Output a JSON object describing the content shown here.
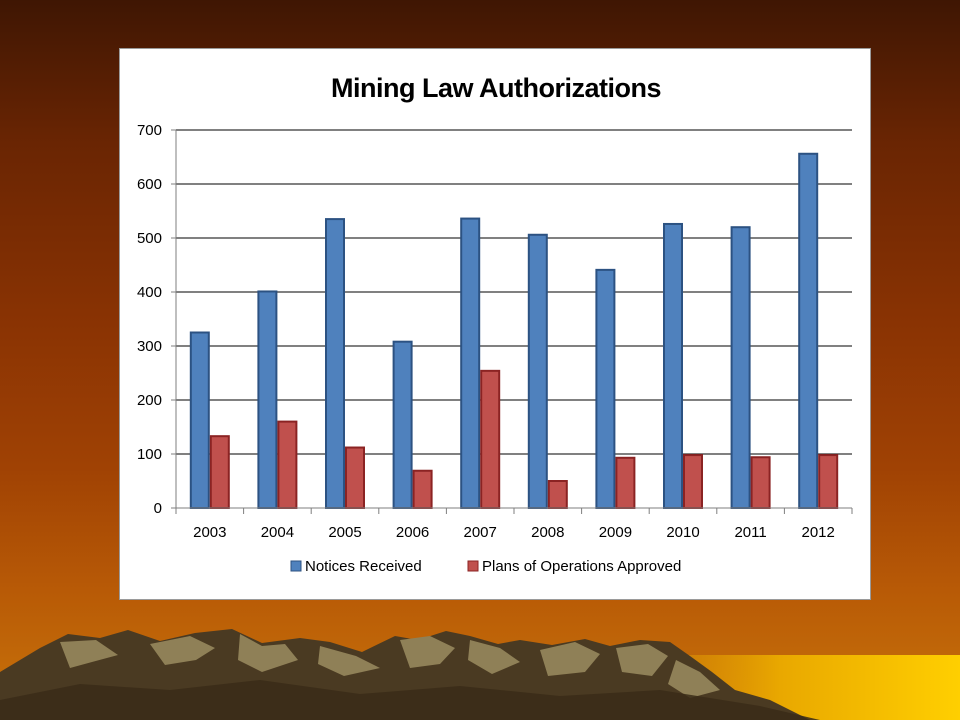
{
  "colors": {
    "notices": "#4f81bd",
    "notices_edge": "#2c5282",
    "plans": "#c0504d",
    "plans_edge": "#8b2323",
    "mountain_dark": "#4a3a22",
    "mountain_light": "#8f8057",
    "sun_glow": "#f5c400"
  },
  "chart_data": {
    "type": "bar",
    "title": "Mining Law Authorizations",
    "xlabel": "",
    "ylabel": "",
    "categories": [
      "2003",
      "2004",
      "2005",
      "2006",
      "2007",
      "2008",
      "2009",
      "2010",
      "2011",
      "2012"
    ],
    "series": [
      {
        "name": "Notices Received",
        "values": [
          325,
          401,
          535,
          308,
          536,
          506,
          441,
          526,
          520,
          656
        ]
      },
      {
        "name": "Plans of Operations Approved",
        "values": [
          133,
          160,
          112,
          69,
          254,
          50,
          93,
          98,
          94,
          98
        ]
      }
    ],
    "ylim": [
      0,
      700
    ],
    "yticks": [
      0,
      100,
      200,
      300,
      400,
      500,
      600,
      700
    ],
    "grid": true,
    "legend_position": "bottom"
  }
}
